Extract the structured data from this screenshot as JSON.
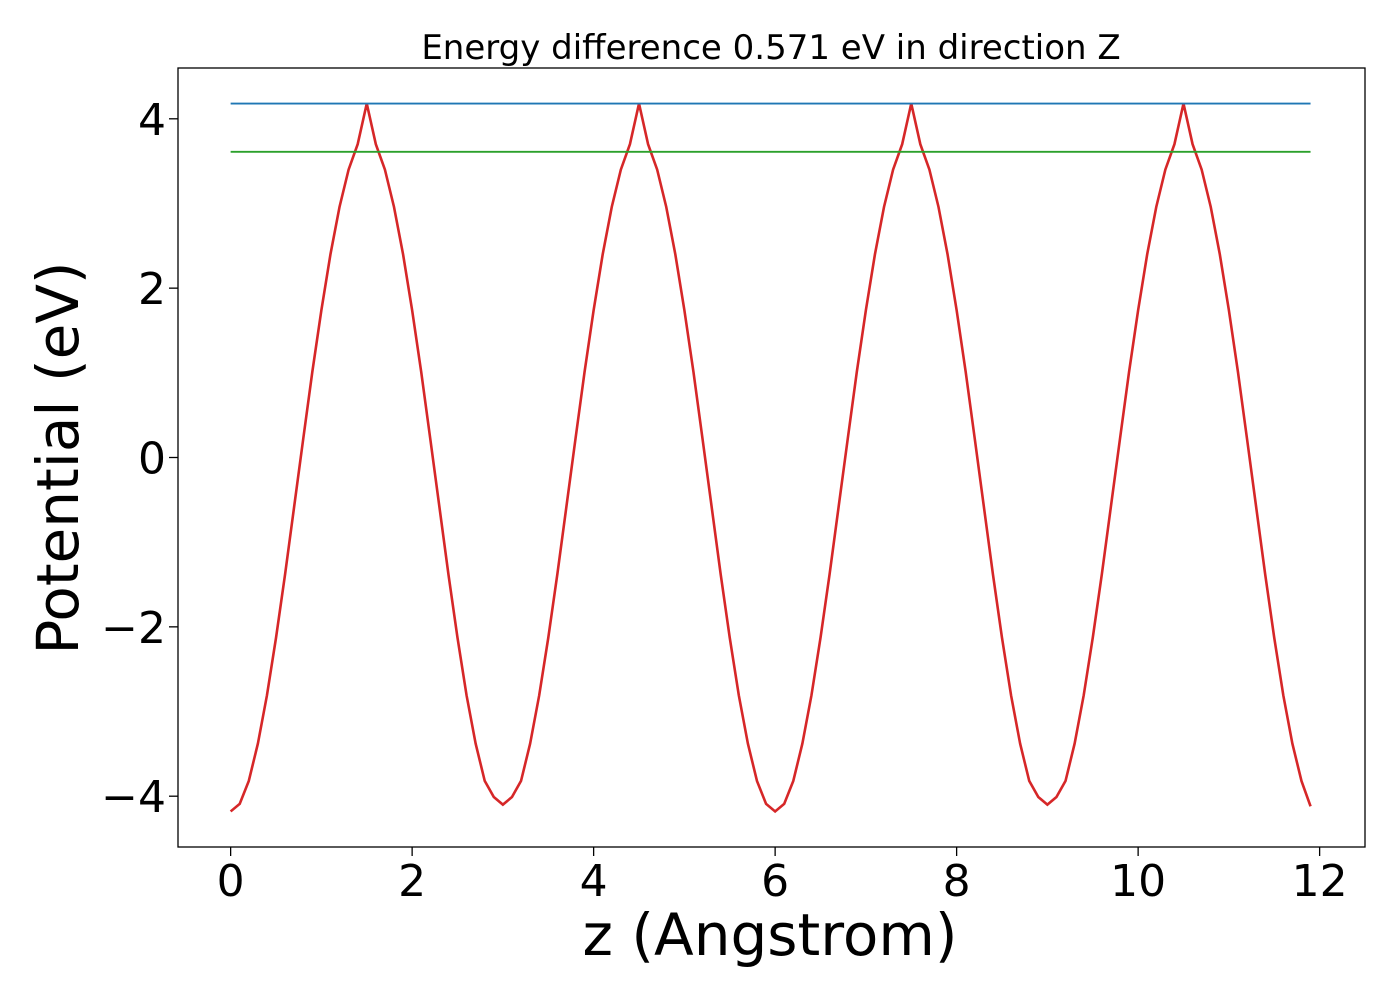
{
  "chart_data": {
    "type": "line",
    "title": "Energy difference 0.571 eV in direction Z",
    "xlabel": "z (Angstrom)",
    "ylabel": "Potential (eV)",
    "xlim": [
      -0.58,
      12.5
    ],
    "ylim": [
      -4.6,
      4.6
    ],
    "xticks": [
      0,
      2,
      4,
      6,
      8,
      10,
      12
    ],
    "xtick_labels": [
      "0",
      "2",
      "4",
      "6",
      "8",
      "10",
      "12"
    ],
    "yticks": [
      -4,
      -2,
      0,
      2,
      4
    ],
    "ytick_labels": [
      "−4",
      "−2",
      "0",
      "2",
      "4"
    ],
    "grid": false,
    "series": [
      {
        "color": "#d62728",
        "x": [
          0.0,
          0.1,
          0.2,
          0.3,
          0.4,
          0.5,
          0.6,
          0.7,
          0.8,
          0.9,
          1.0,
          1.1,
          1.2,
          1.3,
          1.4,
          1.5,
          1.6,
          1.7,
          1.8,
          1.9,
          2.0,
          2.1,
          2.2,
          2.3,
          2.4,
          2.5,
          2.6,
          2.7,
          2.8,
          2.9,
          3.0,
          3.1,
          3.2,
          3.3,
          3.4,
          3.5,
          3.6,
          3.7,
          3.8,
          3.9,
          4.0,
          4.1,
          4.2,
          4.3,
          4.4,
          4.5,
          4.6,
          4.7,
          4.8,
          4.9,
          5.0,
          5.1,
          5.2,
          5.3,
          5.4,
          5.5,
          5.6,
          5.7,
          5.8,
          5.9,
          6.0,
          6.1,
          6.2,
          6.3,
          6.4,
          6.5,
          6.6,
          6.7,
          6.8,
          6.9,
          7.0,
          7.1,
          7.2,
          7.3,
          7.4,
          7.5,
          7.6,
          7.7,
          7.8,
          7.9,
          8.0,
          8.1,
          8.2,
          8.3,
          8.4,
          8.5,
          8.6,
          8.7,
          8.8,
          8.9,
          9.0,
          9.1,
          9.2,
          9.3,
          9.4,
          9.5,
          9.6,
          9.7,
          9.8,
          9.9,
          10.0,
          10.1,
          10.2,
          10.3,
          10.4,
          10.5,
          10.6,
          10.7,
          10.8,
          10.9,
          11.0,
          11.1,
          11.2,
          11.3,
          11.4,
          11.5,
          11.6,
          11.7,
          11.8,
          11.9
        ],
        "y": [
          -4.18,
          -4.09,
          -3.82,
          -3.38,
          -2.81,
          -2.13,
          -1.38,
          -0.58,
          0.22,
          1.01,
          1.74,
          2.4,
          2.96,
          3.4,
          3.7,
          4.18,
          3.7,
          3.4,
          2.96,
          2.4,
          1.74,
          1.01,
          0.22,
          -0.58,
          -1.38,
          -2.13,
          -2.81,
          -3.38,
          -3.82,
          -4.01,
          -4.1,
          -4.01,
          -3.82,
          -3.38,
          -2.81,
          -2.13,
          -1.38,
          -0.58,
          0.22,
          1.01,
          1.74,
          2.4,
          2.96,
          3.4,
          3.7,
          4.18,
          3.7,
          3.4,
          2.96,
          2.4,
          1.74,
          1.01,
          0.22,
          -0.58,
          -1.38,
          -2.13,
          -2.81,
          -3.38,
          -3.82,
          -4.09,
          -4.18,
          -4.09,
          -3.82,
          -3.38,
          -2.81,
          -2.13,
          -1.38,
          -0.58,
          0.22,
          1.01,
          1.74,
          2.4,
          2.96,
          3.4,
          3.7,
          4.18,
          3.7,
          3.4,
          2.96,
          2.4,
          1.74,
          1.01,
          0.22,
          -0.58,
          -1.38,
          -2.13,
          -2.81,
          -3.38,
          -3.82,
          -4.01,
          -4.1,
          -4.01,
          -3.82,
          -3.38,
          -2.81,
          -2.13,
          -1.38,
          -0.58,
          0.22,
          1.01,
          1.74,
          2.4,
          2.96,
          3.4,
          3.7,
          4.18,
          3.7,
          3.4,
          2.96,
          2.4,
          1.74,
          1.01,
          0.22,
          -0.58,
          -1.38,
          -2.13,
          -2.81,
          -3.38,
          -3.82,
          -4.12
        ]
      },
      {
        "color": "#1f77b4",
        "x": [
          0.0,
          11.9
        ],
        "y": [
          4.18,
          4.18
        ]
      },
      {
        "color": "#2ca02c",
        "x": [
          0.0,
          11.9
        ],
        "y": [
          3.61,
          3.61
        ]
      }
    ]
  }
}
